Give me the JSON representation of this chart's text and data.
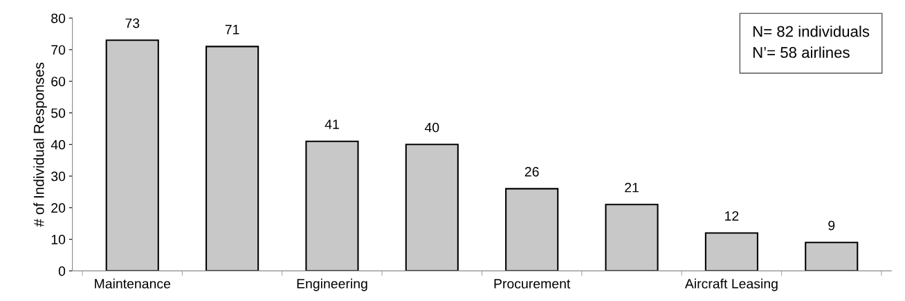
{
  "chart_data": {
    "type": "bar",
    "ylabel": "# of Individual Responses",
    "categories": [
      "Maintenance",
      null,
      "Engineering",
      null,
      "Procurement",
      null,
      "Aircraft Leasing",
      null
    ],
    "values": [
      73,
      71,
      41,
      40,
      26,
      21,
      12,
      9
    ],
    "color": "#c8c8c8",
    "ylim": [
      0,
      80
    ],
    "yticks": [
      0,
      10,
      20,
      30,
      40,
      50,
      60,
      70,
      80
    ],
    "grid": false,
    "data_labels": true,
    "annotations": [
      "N= 82 individuals\nN’= 58 airlines"
    ]
  }
}
